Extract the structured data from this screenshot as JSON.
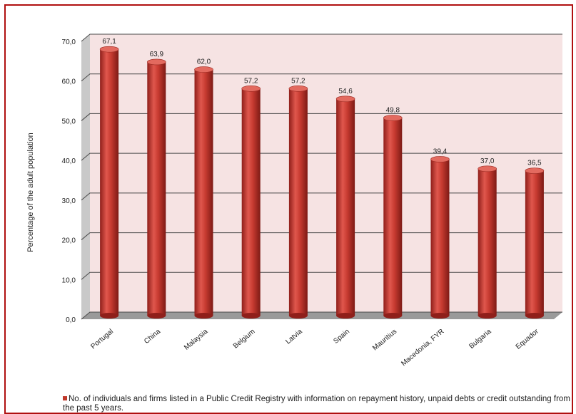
{
  "chart_data": {
    "type": "bar",
    "categories": [
      "Portugal",
      "China",
      "Malaysia",
      "Belgium",
      "Latvia",
      "Spain",
      "Mauritius",
      "Macedonia, FYR",
      "Bulgaria",
      "Equador"
    ],
    "series": [
      {
        "name": "No. of individuals and firms listed in a Public Credit Registry with information on repayment history, unpaid debts or credit outstanding from the past 5 years.",
        "values": [
          67.1,
          63.9,
          62.0,
          57.2,
          57.2,
          54.6,
          49.8,
          39.4,
          37.0,
          36.5
        ],
        "labels": [
          "67,1",
          "63,9",
          "62,0",
          "57,2",
          "57,2",
          "54,6",
          "49,8",
          "39,4",
          "37,0",
          "36,5"
        ],
        "color": "#c0392b"
      }
    ],
    "ylabel": "Percentage of the adult population",
    "xlabel": "",
    "ylim": [
      0,
      70
    ],
    "yticks": [
      "0,0",
      "10,0",
      "20,0",
      "30,0",
      "40,0",
      "50,0",
      "60,0",
      "70,0"
    ],
    "grid": true,
    "legend_position": "bottom",
    "colors": {
      "bar": "#c0392b",
      "wall": "#f6e3e3",
      "floor": "#9a9a9a",
      "border": "#b01010"
    }
  }
}
